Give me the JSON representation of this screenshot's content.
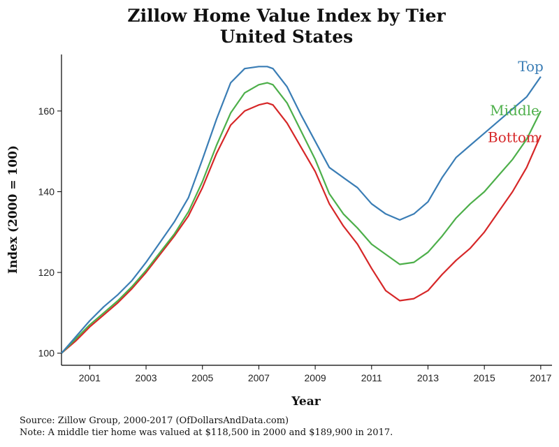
{
  "chart_data": {
    "type": "line",
    "title": "Zillow Home Value Index by Tier",
    "subtitle": "United States",
    "xlabel": "Year",
    "ylabel": "Index (2000 = 100)",
    "xlim": [
      2000,
      2017.4
    ],
    "ylim": [
      97,
      174
    ],
    "x_ticks": [
      2001,
      2003,
      2005,
      2007,
      2009,
      2011,
      2013,
      2015,
      2017
    ],
    "y_ticks": [
      100,
      120,
      140,
      160
    ],
    "grid": false,
    "legend": "direct labels at line ends",
    "x": [
      2000.0,
      2000.5,
      2001.0,
      2001.5,
      2002.0,
      2002.5,
      2003.0,
      2003.5,
      2004.0,
      2004.5,
      2005.0,
      2005.5,
      2006.0,
      2006.5,
      2007.0,
      2007.3,
      2007.5,
      2008.0,
      2008.5,
      2009.0,
      2009.5,
      2010.0,
      2010.5,
      2011.0,
      2011.5,
      2012.0,
      2012.5,
      2013.0,
      2013.5,
      2014.0,
      2014.5,
      2015.0,
      2015.5,
      2016.0,
      2016.5,
      2017.0
    ],
    "series": [
      {
        "name": "Top",
        "color": "#3a7db5",
        "values": [
          100,
          104,
          108,
          111.5,
          114.5,
          118,
          122.5,
          127.5,
          132.5,
          138.5,
          148,
          158,
          167,
          170.5,
          171,
          171,
          170.5,
          166,
          159,
          152.5,
          146,
          143.5,
          141,
          137,
          134.5,
          133,
          134.5,
          137.5,
          143.5,
          148.5,
          151.5,
          154.5,
          157.5,
          160.5,
          163.5,
          168.5
        ]
      },
      {
        "name": "Middle",
        "color": "#4daf4a",
        "values": [
          100,
          103.5,
          107,
          110,
          113,
          116.5,
          120.5,
          125,
          129.5,
          135,
          142.5,
          151.5,
          159.5,
          164.5,
          166.5,
          167,
          166.5,
          162,
          155,
          148,
          139.5,
          134.5,
          131,
          127,
          124.5,
          122,
          122.5,
          125,
          129,
          133.5,
          137,
          140,
          144,
          148,
          153,
          160
        ]
      },
      {
        "name": "Bottom",
        "color": "#d62728",
        "values": [
          100,
          103,
          106.5,
          109.5,
          112.5,
          116,
          120,
          124.5,
          129,
          134,
          141,
          149.5,
          156.5,
          160,
          161.5,
          162,
          161.5,
          157,
          151,
          145,
          137,
          131.5,
          127,
          121,
          115.5,
          113,
          113.5,
          115.5,
          119.5,
          123,
          126,
          130,
          135,
          140,
          146,
          154
        ]
      }
    ]
  },
  "footnotes": {
    "source": "Source:  Zillow Group, 2000-2017 (OfDollarsAndData.com)",
    "note": "Note:  A middle tier home was valued at $118,500 in 2000 and $189,900 in 2017."
  }
}
